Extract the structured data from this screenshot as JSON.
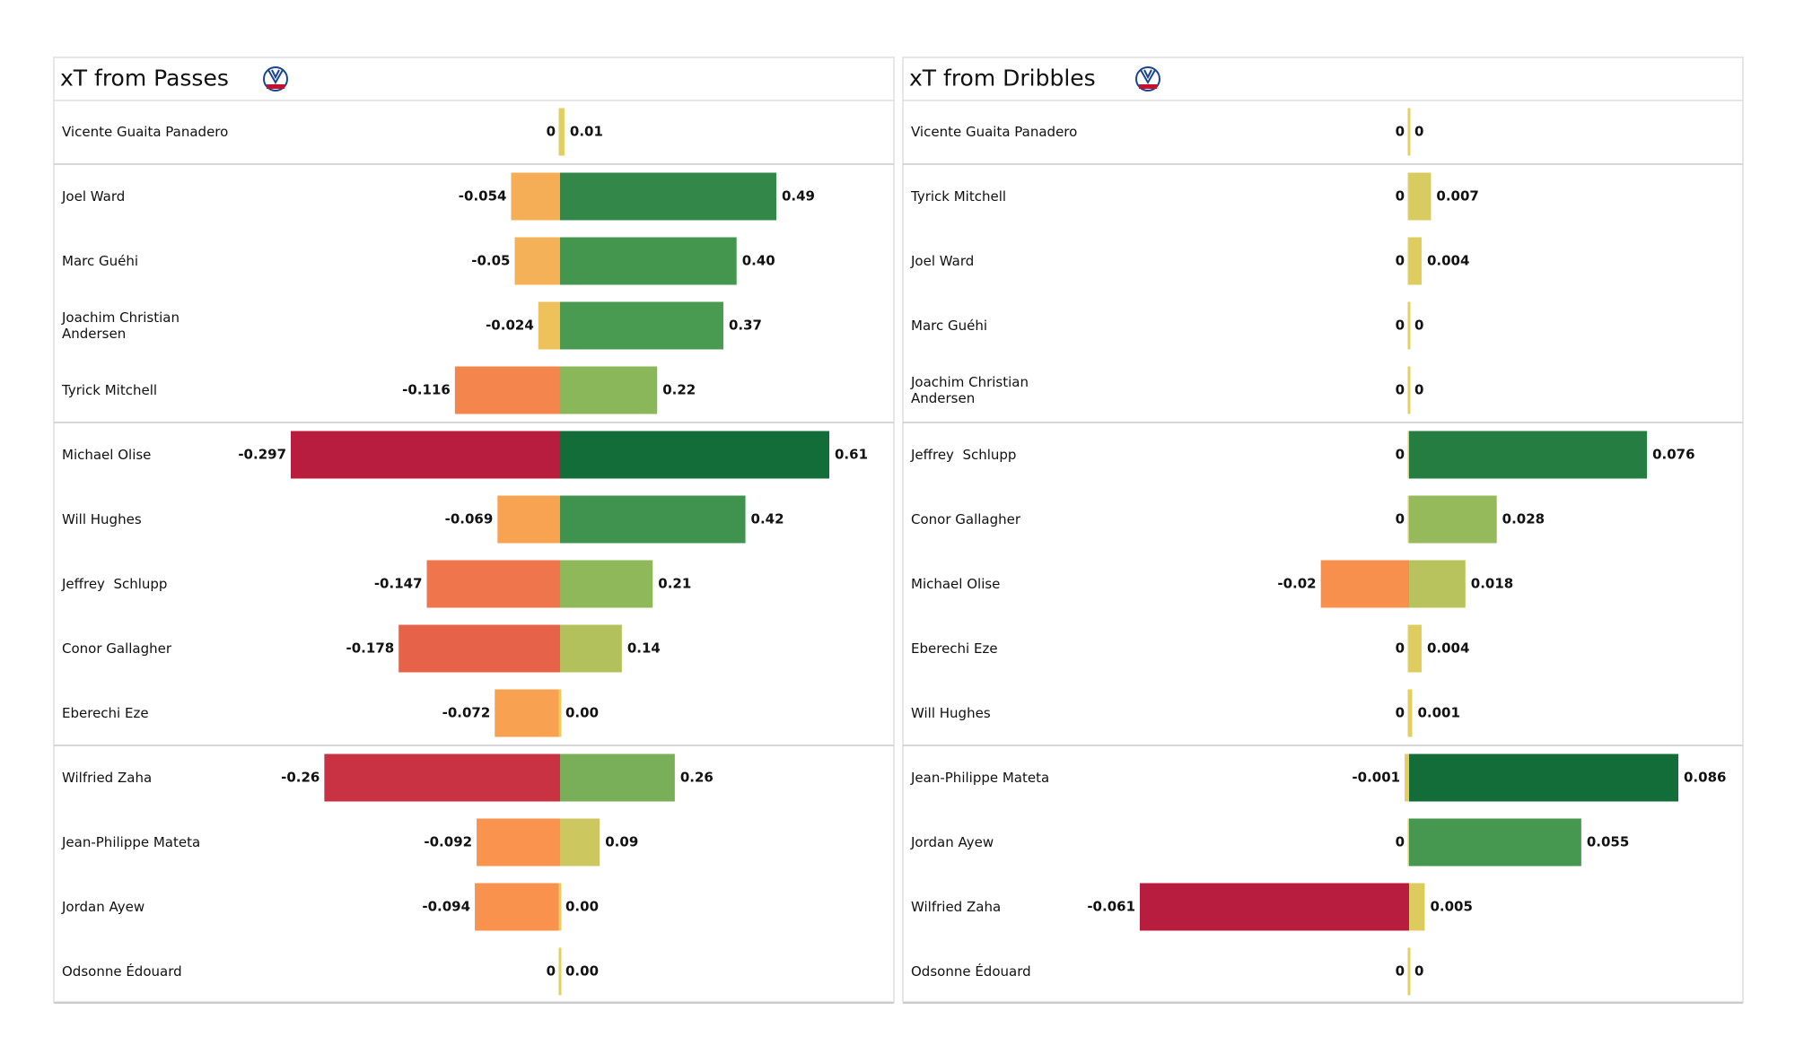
{
  "chart_data": [
    {
      "type": "diverging-bar",
      "title": "xT from Passes",
      "categories": [
        "Vicente Guaita Panadero",
        "Joel Ward",
        "Marc Guéhi",
        "Joachim Christian\nAndersen",
        "Tyrick Mitchell",
        "Michael Olise",
        "Will Hughes",
        "Jeffrey  Schlupp",
        "Conor Gallagher",
        "Eberechi Eze",
        "Wilfried Zaha",
        "Jean-Philippe Mateta",
        "Jordan Ayew",
        "Odsonne Édouard"
      ],
      "series": [
        {
          "values": [
            0,
            -0.054,
            -0.05,
            -0.024,
            -0.116,
            -0.297,
            -0.069,
            -0.147,
            -0.178,
            -0.072,
            -0.26,
            -0.092,
            -0.094,
            0
          ]
        },
        {
          "values": [
            0.01,
            0.49,
            0.4,
            0.37,
            0.22,
            0.61,
            0.42,
            0.21,
            0.14,
            0,
            0.26,
            0.09,
            0,
            0
          ],
          "value_labels": [
            "0.01",
            "0.49",
            "0.40",
            "0.37",
            "0.22",
            "0.61",
            "0.42",
            "0.21",
            "0.14",
            "0.00",
            "0.26",
            "0.09",
            "0.00",
            "0.00"
          ]
        }
      ]
    },
    {
      "type": "diverging-bar",
      "title": "xT from Dribbles",
      "categories": [
        "Vicente Guaita Panadero",
        "Tyrick Mitchell",
        "Joel Ward",
        "Marc Guéhi",
        "Joachim Christian\nAndersen",
        "Jeffrey  Schlupp",
        "Conor Gallagher",
        "Michael Olise",
        "Eberechi Eze",
        "Will Hughes",
        "Jean-Philippe Mateta",
        "Jordan Ayew",
        "Wilfried Zaha",
        "Odsonne Édouard"
      ],
      "series": [
        {
          "values": [
            0,
            0,
            0,
            0,
            0,
            0,
            0,
            -0.02,
            0,
            0,
            -0.001,
            0,
            -0.061,
            0
          ]
        },
        {
          "values": [
            0,
            0.007,
            0.004,
            0,
            0,
            0.076,
            0.028,
            0.018,
            0.004,
            0.001,
            0.086,
            0.055,
            0.005,
            0
          ]
        }
      ]
    }
  ]
}
